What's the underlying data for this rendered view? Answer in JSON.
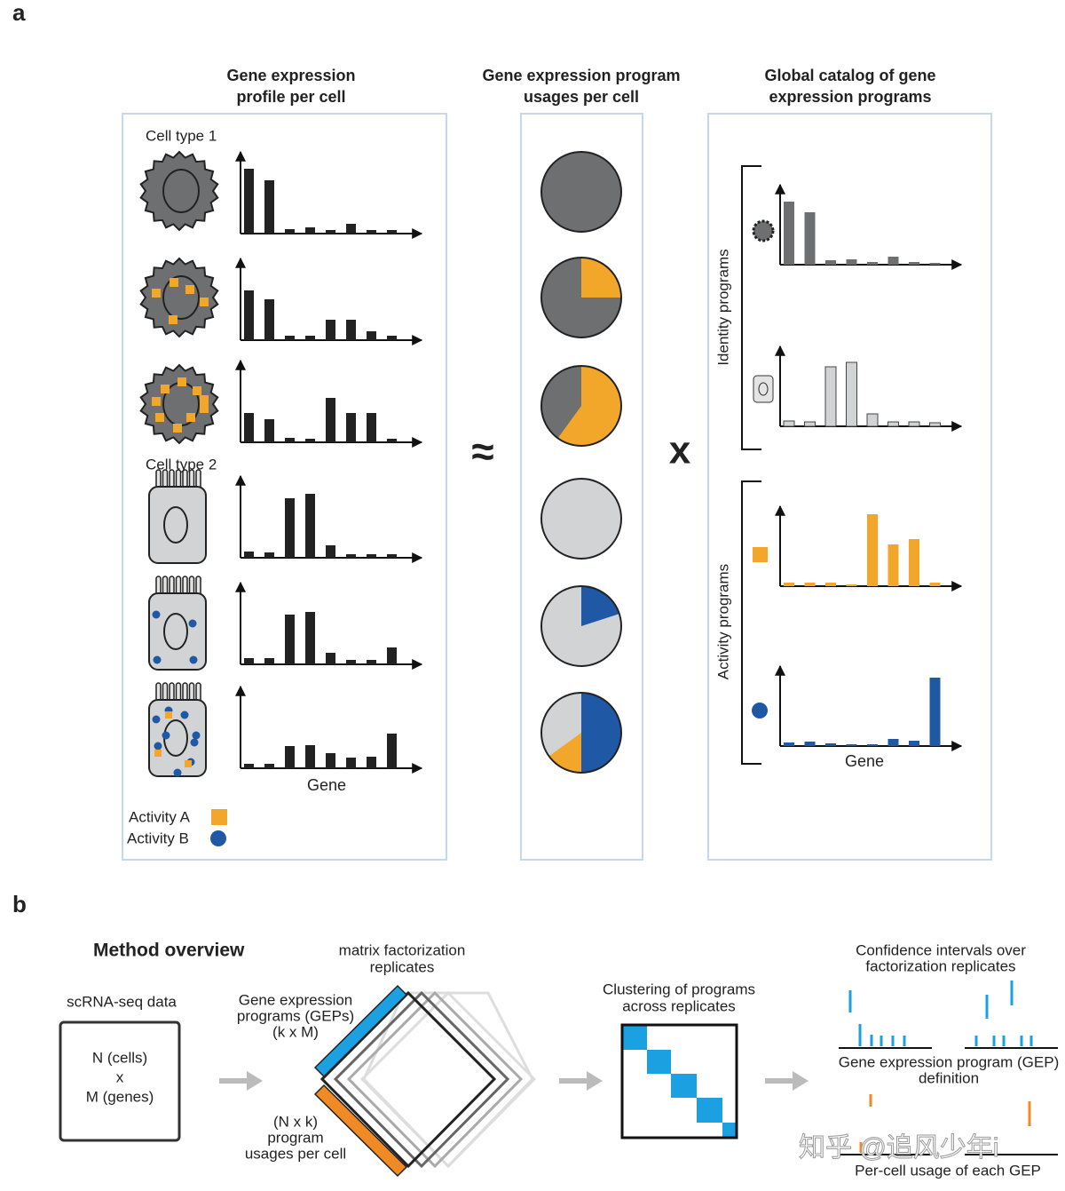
{
  "panel_a": {
    "label": "a",
    "profile_title": [
      "Gene expression",
      "profile per cell"
    ],
    "usage_title": [
      "Gene expression program",
      "usages per cell"
    ],
    "catalog_title": [
      "Global catalog of gene",
      "expression programs"
    ],
    "approx": "≈",
    "times": "x",
    "cells": [
      {
        "label": "Cell type 1",
        "bars": [
          73,
          60,
          5,
          7,
          4,
          11,
          4,
          4
        ]
      },
      {
        "bars": [
          56,
          46,
          5,
          5,
          23,
          23,
          10,
          5
        ]
      },
      {
        "bars": [
          33,
          26,
          5,
          4,
          50,
          33,
          33,
          4
        ]
      },
      {
        "label": "Cell type 2",
        "bars": [
          7,
          6,
          67,
          72,
          14,
          4,
          4,
          4
        ]
      },
      {
        "bars": [
          7,
          7,
          56,
          59,
          13,
          5,
          5,
          19
        ]
      },
      {
        "bars": [
          5,
          5,
          25,
          26,
          17,
          12,
          13,
          39
        ]
      }
    ],
    "profile_axis_label": "Gene",
    "legend": [
      "Activity A",
      "Activity B"
    ],
    "pies": [
      {
        "base": "#6d6f71",
        "slices": []
      },
      {
        "base": "#6d6f71",
        "slices": [
          {
            "color": "#f2a72b",
            "value": 25
          }
        ]
      },
      {
        "base": "#6d6f71",
        "slices": [
          {
            "color": "#f2a72b",
            "value": 60
          }
        ]
      },
      {
        "base": "#d2d3d5",
        "slices": []
      },
      {
        "base": "#d2d3d5",
        "slices": [
          {
            "color": "#1f58a5",
            "value": 20
          }
        ]
      },
      {
        "base": "#d2d3d5",
        "slices": [
          {
            "color": "#1f58a5",
            "value": 50
          },
          {
            "color": "#f2a72b",
            "value": 15
          }
        ]
      }
    ],
    "group_labels": [
      "Identity programs",
      "Activity programs"
    ],
    "programs": [
      {
        "color": "#6d6f71",
        "bars": [
          71,
          59,
          5,
          6,
          3,
          9,
          3,
          2
        ]
      },
      {
        "color": "#d2d3d5",
        "bars": [
          6,
          5,
          67,
          72,
          14,
          5,
          5,
          4
        ]
      },
      {
        "color": "#f2a72b",
        "bars": [
          4,
          4,
          4,
          2,
          81,
          47,
          53,
          4
        ]
      },
      {
        "color": "#1f58a5",
        "bars": [
          4,
          5,
          3,
          2,
          2,
          8,
          6,
          77
        ]
      }
    ],
    "catalog_axis_label": "Gene"
  },
  "panel_b": {
    "label": "b",
    "title": "Method overview",
    "data_title": "scRNA-seq data",
    "data_box": [
      "N (cells)",
      "x",
      "M (genes)"
    ],
    "replicates_title": [
      "matrix factorization",
      "replicates"
    ],
    "geps_label": [
      "Gene expression",
      "programs (GEPs)",
      "(k x M)"
    ],
    "usage_label": [
      "(N x k)",
      "program",
      "usages per cell"
    ],
    "cluster_title": [
      "Clustering of programs",
      "across replicates"
    ],
    "ci_title": [
      "Confidence intervals over",
      "factorization replicates"
    ],
    "gep_def": [
      "Gene expression program (GEP)",
      "definition"
    ],
    "usage_def": "Per-cell usage of each GEP",
    "watermark": "知乎 @追风少年i"
  }
}
